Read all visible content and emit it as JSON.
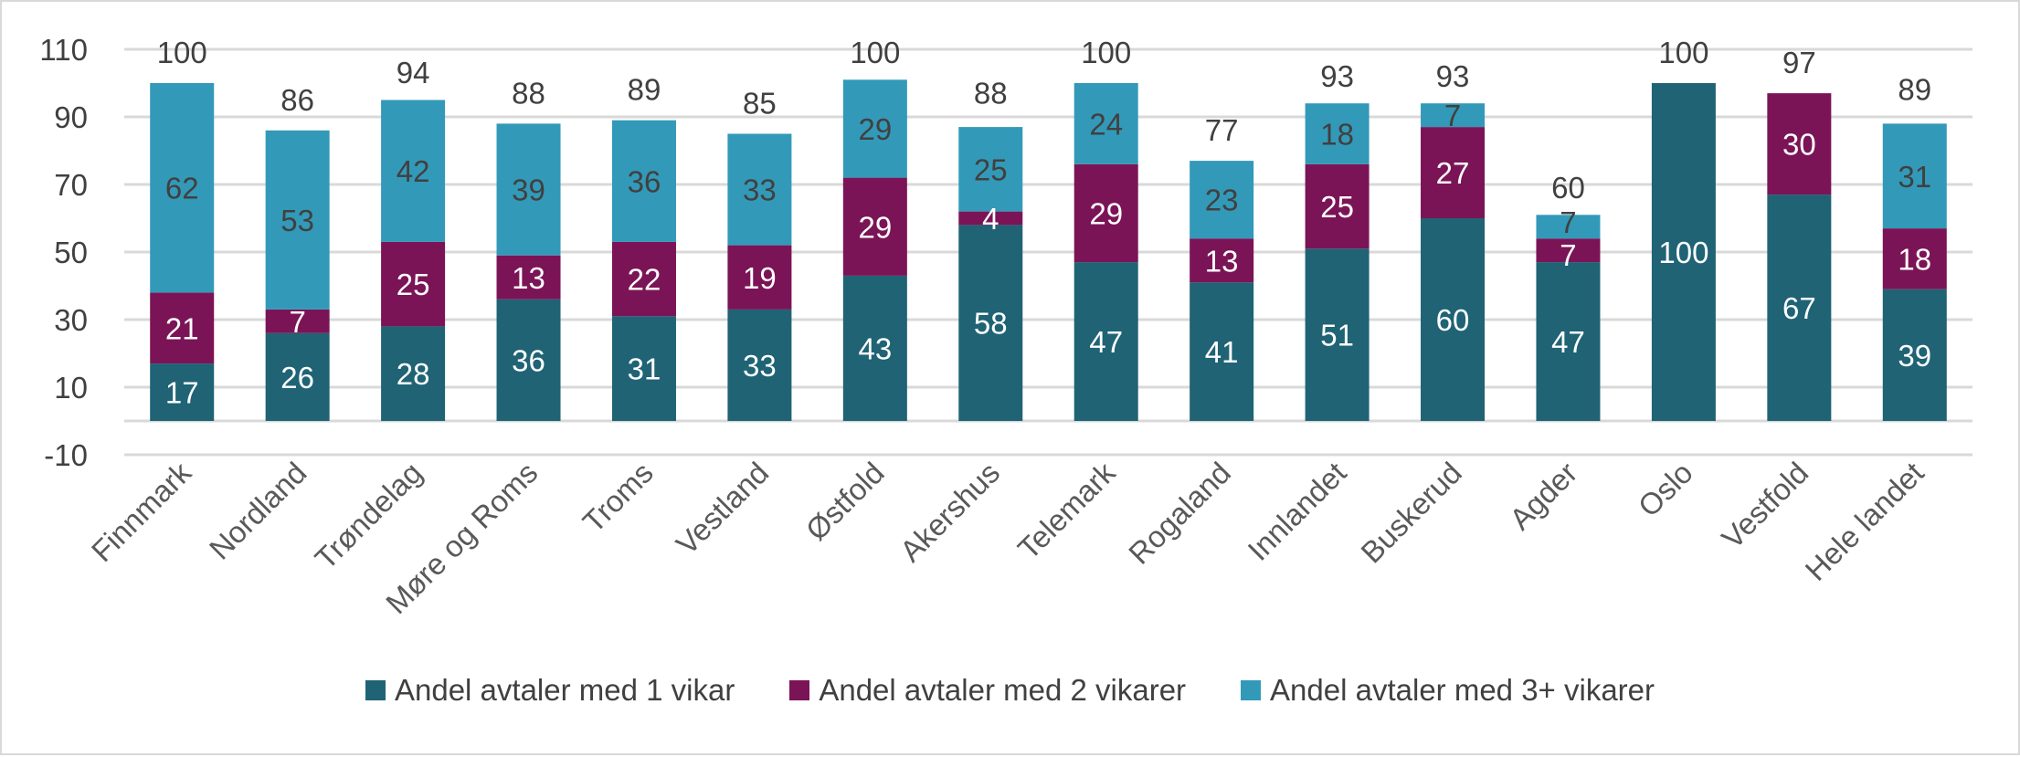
{
  "chart_data": {
    "type": "bar",
    "stacked": true,
    "categories": [
      "Finnmark",
      "Nordland",
      "Trøndelag",
      "Møre og Roms",
      "Troms",
      "Vestland",
      "Østfold",
      "Akershus",
      "Telemark",
      "Rogaland",
      "Innlandet",
      "Buskerud",
      "Agder",
      "Oslo",
      "Vestfold",
      "Hele landet"
    ],
    "series": [
      {
        "name": "Andel avtaler med 1 vikar",
        "color": "#1f6375",
        "values": [
          17,
          26,
          28,
          36,
          31,
          33,
          43,
          58,
          47,
          41,
          51,
          60,
          47,
          100,
          67,
          39
        ]
      },
      {
        "name": "Andel avtaler med 2 vikarer",
        "color": "#7b1456",
        "values": [
          21,
          7,
          25,
          13,
          22,
          19,
          29,
          4,
          29,
          13,
          25,
          27,
          7,
          0,
          30,
          18
        ]
      },
      {
        "name": "Andel avtaler med 3+ vikarer",
        "color": "#3399b8",
        "values": [
          62,
          53,
          42,
          39,
          36,
          33,
          29,
          25,
          24,
          23,
          18,
          7,
          7,
          0,
          0,
          31
        ]
      }
    ],
    "totals": [
      100,
      86,
      94,
      88,
      89,
      85,
      100,
      88,
      100,
      77,
      93,
      93,
      60,
      100,
      97,
      89
    ],
    "yticks": [
      -10,
      10,
      30,
      50,
      70,
      90,
      110
    ],
    "ylim": [
      -10,
      110
    ],
    "grid": true,
    "legend": "bottom",
    "title": "",
    "xlabel": "",
    "ylabel": ""
  }
}
